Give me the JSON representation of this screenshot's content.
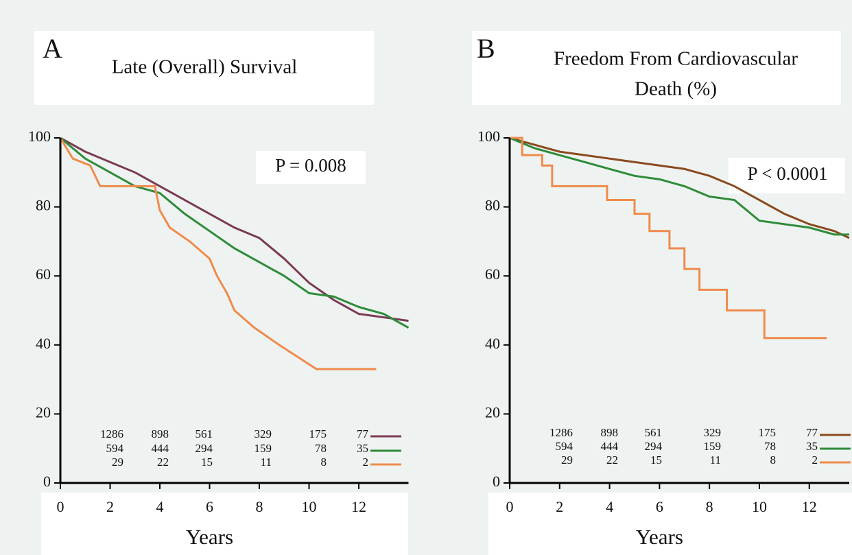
{
  "chart_data": [
    {
      "type": "line",
      "panel": "A",
      "title": [
        "Late (Overall) Survival"
      ],
      "annotation": "P = 0.008",
      "xlabel": "Years",
      "xlim": [
        0,
        14
      ],
      "ylim": [
        0,
        100
      ],
      "xticks": [
        0,
        2,
        4,
        6,
        8,
        10,
        12
      ],
      "yticks": [
        0,
        20,
        40,
        60,
        80,
        100
      ],
      "series": [
        {
          "color": "#7b3a55",
          "x": [
            0,
            1,
            2,
            3,
            4,
            5,
            6,
            7,
            8,
            9,
            10,
            11,
            12,
            13,
            14
          ],
          "values": [
            100,
            96,
            93,
            90,
            86,
            82,
            78,
            74,
            71,
            65,
            58,
            53,
            49,
            48,
            47
          ],
          "at_risk": [
            1286,
            898,
            561,
            329,
            175,
            77
          ]
        },
        {
          "color": "#2e8b3a",
          "x": [
            0,
            1,
            2,
            3,
            4,
            5,
            6,
            7,
            8,
            9,
            10,
            11,
            12,
            13,
            14
          ],
          "values": [
            100,
            94,
            90,
            86,
            84,
            78,
            73,
            68,
            64,
            60,
            55,
            54,
            51,
            49,
            45
          ],
          "at_risk": [
            594,
            444,
            294,
            159,
            78,
            35
          ]
        },
        {
          "color": "#f08a4b",
          "x": [
            0,
            0.5,
            1.2,
            1.6,
            3.8,
            4.0,
            4.4,
            5.2,
            6.0,
            6.3,
            6.7,
            7.0,
            7.8,
            8.8,
            10.3,
            12.7
          ],
          "values": [
            100,
            94,
            92,
            86,
            86,
            79,
            74,
            70,
            65,
            60,
            55,
            50,
            45,
            40,
            33,
            33
          ],
          "at_risk": [
            29,
            22,
            15,
            11,
            8,
            2
          ]
        }
      ]
    },
    {
      "type": "line",
      "panel": "B",
      "title": [
        "Freedom From Cardiovascular",
        "Death (%)"
      ],
      "annotation": "P < 0.0001",
      "xlabel": "Years",
      "xlim": [
        0,
        13.6
      ],
      "ylim": [
        0,
        100
      ],
      "xticks": [
        0,
        2,
        4,
        6,
        8,
        10,
        12
      ],
      "yticks": [
        0,
        20,
        40,
        60,
        80,
        100
      ],
      "series": [
        {
          "color": "#8b4a1e",
          "x": [
            0,
            1,
            2,
            3,
            4,
            5,
            6,
            7,
            8,
            9,
            10,
            11,
            12,
            13,
            13.6
          ],
          "values": [
            100,
            98,
            96,
            95,
            94,
            93,
            92,
            91,
            89,
            86,
            82,
            78,
            75,
            73,
            71
          ],
          "at_risk": [
            1286,
            898,
            561,
            329,
            175,
            77
          ]
        },
        {
          "color": "#2e8b3a",
          "x": [
            0,
            1,
            2,
            3,
            4,
            5,
            6,
            7,
            8,
            9,
            10,
            11,
            12,
            13,
            13.6
          ],
          "values": [
            100,
            97,
            95,
            93,
            91,
            89,
            88,
            86,
            83,
            82,
            76,
            75,
            74,
            72,
            72
          ],
          "at_risk": [
            594,
            444,
            294,
            159,
            78,
            35
          ]
        },
        {
          "color": "#f08a4b",
          "x": [
            0,
            0.5,
            1.3,
            1.7,
            3.9,
            5.0,
            5.6,
            6.4,
            7.0,
            7.6,
            8.7,
            10.2,
            12.7
          ],
          "values": [
            100,
            95,
            92,
            86,
            82,
            78,
            73,
            68,
            62,
            56,
            50,
            42,
            42
          ],
          "at_risk": [
            29,
            22,
            15,
            11,
            8,
            2
          ]
        }
      ]
    }
  ]
}
